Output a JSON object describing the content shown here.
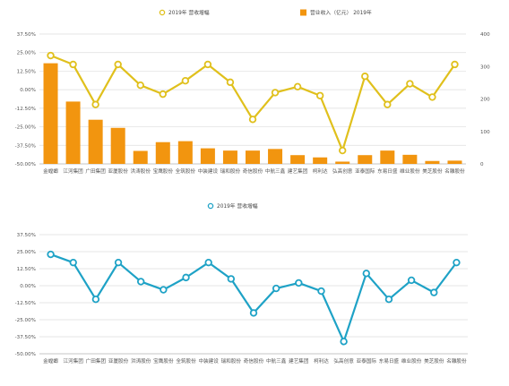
{
  "chart_data": [
    {
      "type": "bar+line",
      "title": "",
      "legend": {
        "placement": "top-center",
        "entries": [
          {
            "name": "2019年 营收增幅",
            "kind": "line",
            "color": "#E0C01C"
          },
          {
            "name": "营业收入（亿元） 2019年",
            "kind": "bar",
            "color": "#F2950F"
          }
        ]
      },
      "categories": [
        "金螳螂",
        "江河集团",
        "广田集团",
        "亚厦股份",
        "洪涛股份",
        "宝鹰股份",
        "全筑股份",
        "中装建设",
        "瑞和股份",
        "奇信股份",
        "中航三鑫",
        "建艺集团",
        "柯利达",
        "弘高创意",
        "亚泰国际",
        "东易日盛",
        "维业股份",
        "美芝股份",
        "名雕股份"
      ],
      "left_axis": {
        "ticks": [
          "37.50%",
          "25.00%",
          "12.50%",
          "0.00%",
          "-12.50%",
          "-25.00%",
          "-37.50%",
          "-50.00%"
        ],
        "range": [
          -50,
          37.5
        ],
        "unit": "%"
      },
      "right_axis": {
        "ticks": [
          "0",
          "100",
          "200",
          "300",
          "400"
        ],
        "range": [
          0,
          400
        ]
      },
      "series": [
        {
          "name": "营业收入（亿元） 2019年",
          "type": "bar",
          "axis": "right",
          "color": "#F2950F",
          "values": [
            310,
            192,
            136,
            111,
            40,
            67,
            70,
            48,
            41,
            41,
            46,
            27,
            20,
            7,
            27,
            41,
            28,
            9,
            10
          ]
        },
        {
          "name": "2019年 营收增幅",
          "type": "line",
          "axis": "left",
          "color": "#E0C01C",
          "values": [
            23,
            17,
            -10,
            17,
            3,
            -3,
            6,
            17,
            5,
            -20,
            -2,
            2,
            -4,
            -41,
            9,
            -10,
            4,
            -5,
            17
          ]
        }
      ]
    },
    {
      "type": "line",
      "title": "",
      "legend": {
        "placement": "top-center",
        "entries": [
          {
            "name": "2019年 营收增幅",
            "kind": "line",
            "color": "#1EA2C6"
          }
        ]
      },
      "categories": [
        "金螳螂",
        "江河集团",
        "广田集团",
        "亚厦股份",
        "洪涛股份",
        "宝鹰股份",
        "全筑股份",
        "中装建设",
        "瑞和股份",
        "奇信股份",
        "中航三鑫",
        "建艺集团",
        "柯利达",
        "弘高创意",
        "亚泰国际",
        "东易日盛",
        "维业股份",
        "美芝股份",
        "名雕股份"
      ],
      "y_axis": {
        "ticks": [
          "37.50%",
          "25.00%",
          "12.50%",
          "0.00%",
          "-12.50%",
          "-25.00%",
          "-37.50%",
          "-50.00%"
        ],
        "range": [
          -50,
          37.5
        ],
        "unit": "%"
      },
      "series": [
        {
          "name": "2019年 营收增幅",
          "type": "line",
          "color": "#1EA2C6",
          "values": [
            23,
            17,
            -10,
            17,
            3,
            -3,
            6,
            17,
            5,
            -20,
            -2,
            2,
            -4,
            -41,
            9,
            -10,
            4,
            -5,
            17
          ]
        }
      ]
    }
  ]
}
